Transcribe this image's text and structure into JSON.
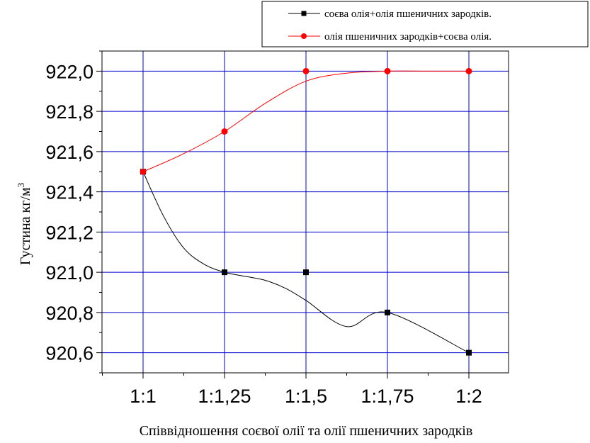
{
  "chart_data": {
    "type": "line",
    "title": "",
    "xlabel": "Співвідношення соєвої олії та олії пшеничних зародків",
    "ylabel": "Густина кг/м",
    "ylabel_sup": "3",
    "categories": [
      "1:1",
      "1:1,25",
      "1:1,5",
      "1:1,75",
      "1:2"
    ],
    "ylim": [
      920.5,
      922.1
    ],
    "yticks": [
      {
        "value": 920.6,
        "label": "920,6"
      },
      {
        "value": 920.8,
        "label": "920,8"
      },
      {
        "value": 921.0,
        "label": "921,0"
      },
      {
        "value": 921.2,
        "label": "921,2"
      },
      {
        "value": 921.4,
        "label": "921,4"
      },
      {
        "value": 921.6,
        "label": "921,6"
      },
      {
        "value": 921.8,
        "label": "921,8"
      },
      {
        "value": 922.0,
        "label": "922,0"
      }
    ],
    "grid": true,
    "grid_color": "#0000cc",
    "legend_position": "top-right",
    "series": [
      {
        "name": "соєва олія+олія пшеничних зародків.",
        "color": "#000000",
        "marker": "square",
        "values": [
          921.5,
          921.0,
          921.0,
          920.8,
          920.6
        ],
        "curve": [
          [
            0,
            921.5
          ],
          [
            0.25,
            921.28
          ],
          [
            0.5,
            921.12
          ],
          [
            0.75,
            921.04
          ],
          [
            1,
            921.0
          ],
          [
            1.25,
            920.98
          ],
          [
            1.5,
            920.96
          ],
          [
            1.75,
            920.92
          ],
          [
            2,
            920.86
          ],
          [
            2.5,
            920.73
          ],
          [
            3,
            920.8
          ],
          [
            4,
            920.6
          ]
        ]
      },
      {
        "name": "олія пшеничних зародків+соєва олія.",
        "color": "#ff0000",
        "marker": "circle",
        "values": [
          921.5,
          921.7,
          922.0,
          922.0,
          922.0
        ],
        "curve": [
          [
            0,
            921.5
          ],
          [
            0.5,
            921.59
          ],
          [
            1,
            921.7
          ],
          [
            1.5,
            921.84
          ],
          [
            2,
            921.95
          ],
          [
            2.5,
            921.99
          ],
          [
            3,
            922.0
          ],
          [
            3.5,
            922.0
          ],
          [
            4,
            922.0
          ]
        ]
      }
    ]
  }
}
